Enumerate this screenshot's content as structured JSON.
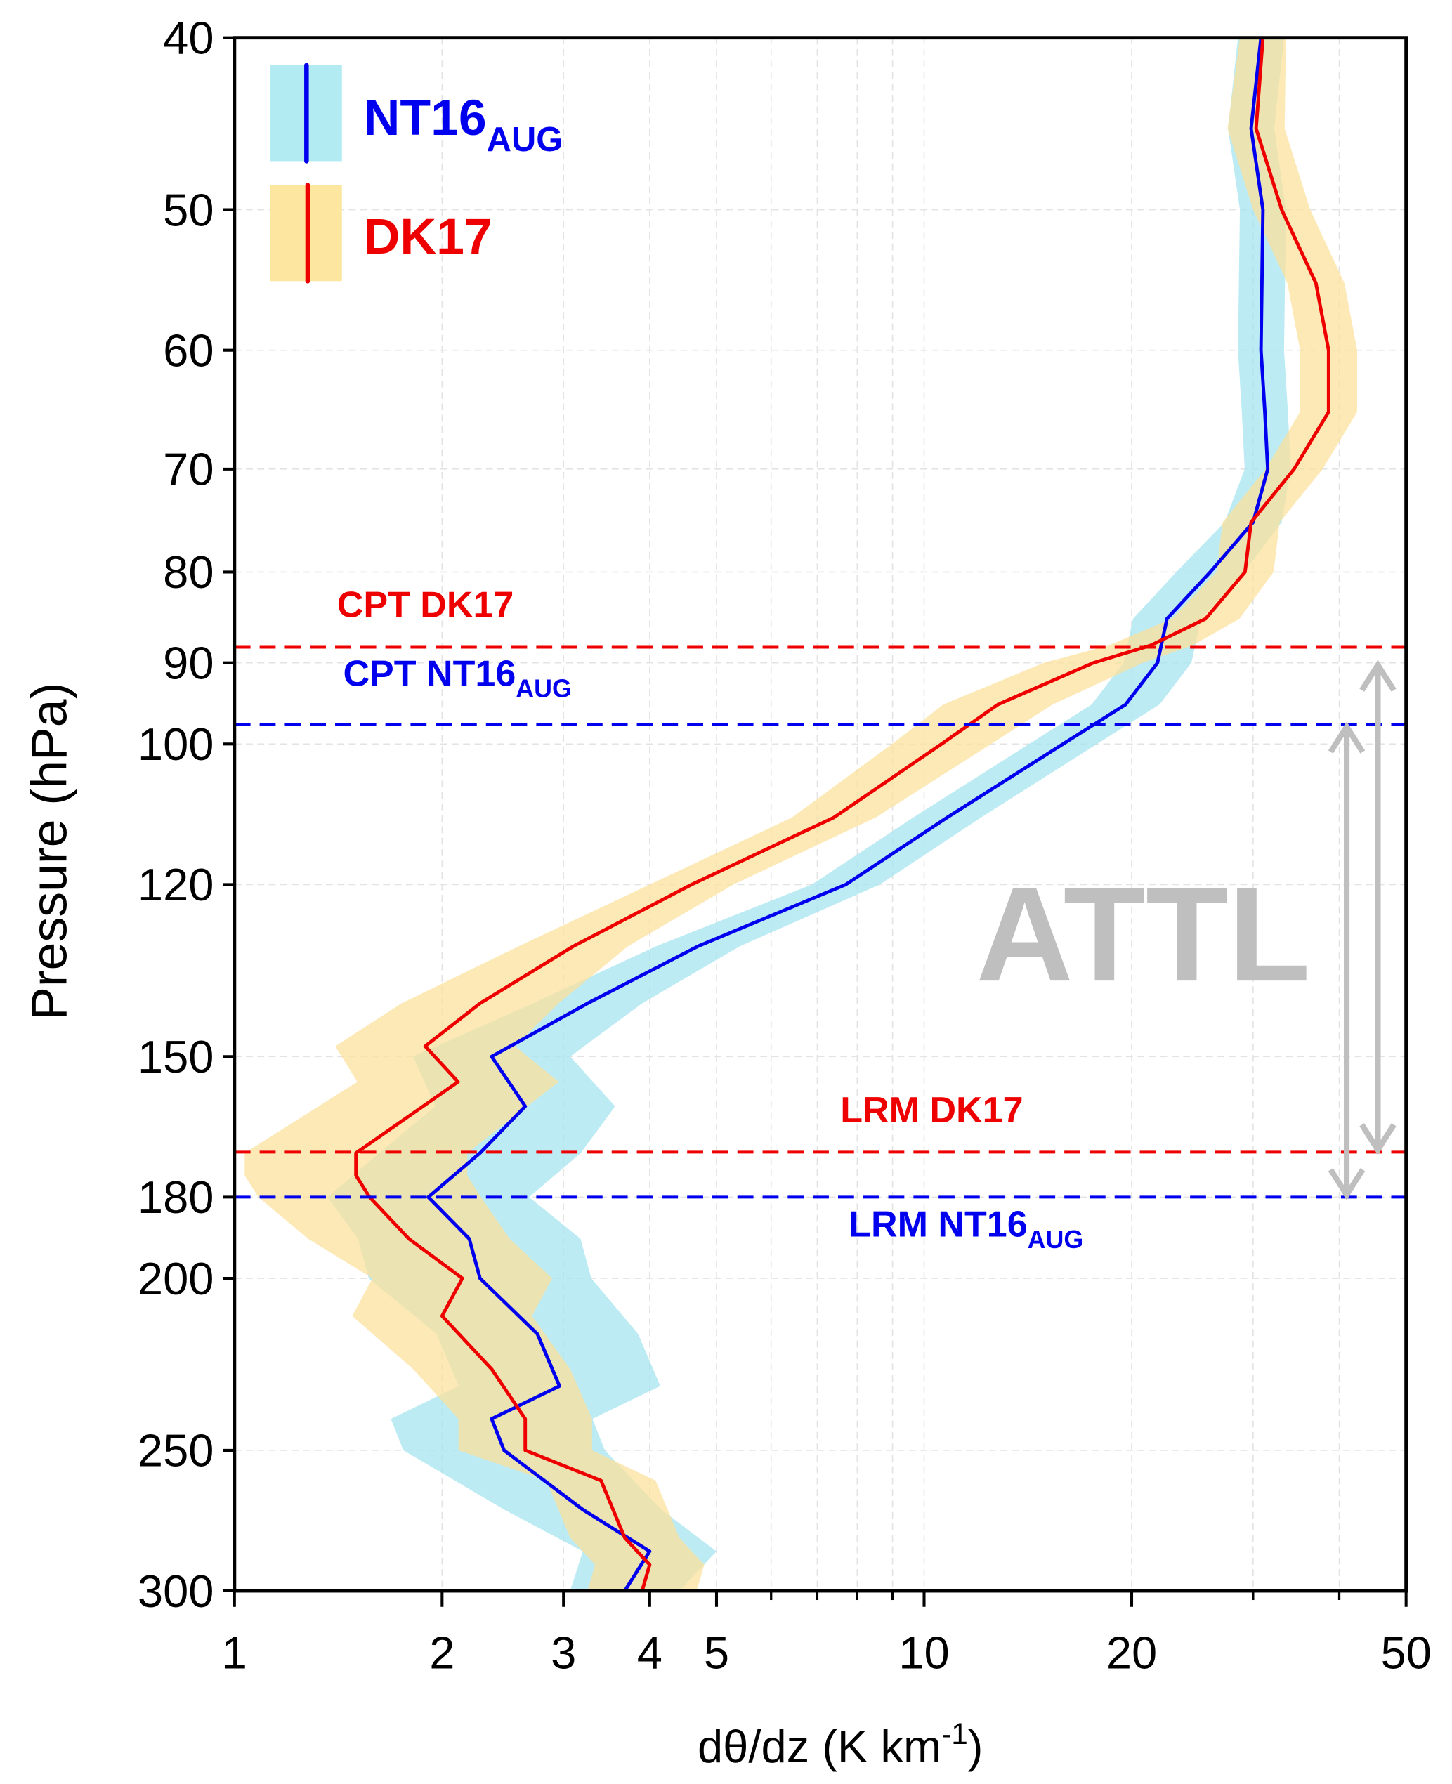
{
  "chart_data": {
    "type": "line",
    "xlabel": "dθ/dz (K km",
    "xlabel_sup": "-1",
    "xlabel_close": ")",
    "ylabel": "Pressure (hPa)",
    "xscale": "log",
    "yscale": "log",
    "xlim": [
      1,
      50
    ],
    "ylim": [
      300,
      40
    ],
    "y_inverted": true,
    "grid": true,
    "x_ticks": [
      1,
      2,
      3,
      4,
      5,
      10,
      20,
      50
    ],
    "x_tick_labels": [
      "1",
      "2",
      "3",
      "4",
      "5",
      "10",
      "20",
      "50"
    ],
    "x_minor_ticks": [
      6,
      7,
      8,
      9,
      30,
      40
    ],
    "y_ticks": [
      40,
      50,
      60,
      70,
      80,
      90,
      100,
      120,
      150,
      180,
      200,
      250,
      300
    ],
    "y_tick_labels": [
      "40",
      "50",
      "60",
      "70",
      "80",
      "90",
      "100",
      "120",
      "150",
      "180",
      "200",
      "250",
      "300"
    ],
    "legend_placement": "top-left",
    "series": [
      {
        "name": "NT16",
        "name_sub": "AUG",
        "line_color": "#0000ee",
        "band_color": "#a6e4f0",
        "pressure": [
          40,
          45,
          50,
          60,
          65,
          70,
          75,
          80,
          85,
          90,
          95,
          100,
          110,
          120,
          130,
          140,
          150,
          160,
          170,
          180,
          190,
          200,
          215,
          230,
          240,
          250,
          270,
          285,
          300
        ],
        "values": [
          30.8,
          29.8,
          31,
          30.8,
          31.2,
          31.5,
          30,
          26,
          22.5,
          21.8,
          19.6,
          15.9,
          10.8,
          7.7,
          4.7,
          3.25,
          2.36,
          2.64,
          2.27,
          1.91,
          2.19,
          2.27,
          2.75,
          2.96,
          2.36,
          2.46,
          3.2,
          4.0,
          3.68
        ],
        "spread_factor": [
          1.08,
          1.08,
          1.08,
          1.08,
          1.08,
          1.08,
          1.1,
          1.12,
          1.12,
          1.12,
          1.12,
          1.12,
          1.12,
          1.12,
          1.15,
          1.2,
          1.3,
          1.35,
          1.4,
          1.4,
          1.45,
          1.45,
          1.4,
          1.4,
          1.4,
          1.4,
          1.3,
          1.25,
          1.2
        ]
      },
      {
        "name": "DK17",
        "name_sub": "",
        "line_color": "#ee0000",
        "band_color": "#fbe29c",
        "pressure": [
          40,
          45,
          50,
          55,
          60,
          65,
          70,
          75,
          80,
          85,
          88,
          90,
          95,
          100,
          110,
          120,
          130,
          140,
          148,
          155,
          170,
          175,
          180,
          190,
          200,
          210,
          225,
          240,
          250,
          260,
          280,
          290,
          300
        ],
        "values": [
          31,
          30.3,
          33,
          37,
          38.6,
          38.6,
          34.4,
          29.8,
          29.2,
          25.6,
          21.3,
          17.6,
          12.8,
          10.6,
          7.4,
          4.6,
          3.1,
          2.27,
          1.89,
          2.11,
          1.5,
          1.5,
          1.57,
          1.79,
          2.14,
          2.0,
          2.36,
          2.64,
          2.64,
          3.4,
          3.68,
          4.0,
          3.9
        ],
        "spread_factor": [
          1.08,
          1.1,
          1.1,
          1.1,
          1.1,
          1.1,
          1.1,
          1.1,
          1.1,
          1.12,
          1.15,
          1.18,
          1.2,
          1.18,
          1.15,
          1.15,
          1.2,
          1.3,
          1.35,
          1.4,
          1.45,
          1.45,
          1.45,
          1.4,
          1.35,
          1.35,
          1.3,
          1.25,
          1.25,
          1.2,
          1.2,
          1.2,
          1.2
        ]
      }
    ],
    "reference_lines": [
      {
        "label": "CPT DK17",
        "label_sub": "",
        "pressure": 88.2,
        "color": "#ee0000"
      },
      {
        "label": "CPT NT16",
        "label_sub": "AUG",
        "pressure": 97.5,
        "color": "#0000ee"
      },
      {
        "label": "LRM DK17",
        "label_sub": "",
        "pressure": 169.8,
        "color": "#ee0000"
      },
      {
        "label": "LRM NT16",
        "label_sub": "AUG",
        "pressure": 180,
        "color": "#0000ee"
      }
    ],
    "annotations": [
      {
        "text": "ATTL",
        "color": "#bfbfbf"
      }
    ],
    "arrows": [
      {
        "from_pressure": 90,
        "to_pressure": 169.8,
        "x_value": 45.5
      },
      {
        "from_pressure": 97.5,
        "to_pressure": 180,
        "x_value": 41
      }
    ]
  }
}
